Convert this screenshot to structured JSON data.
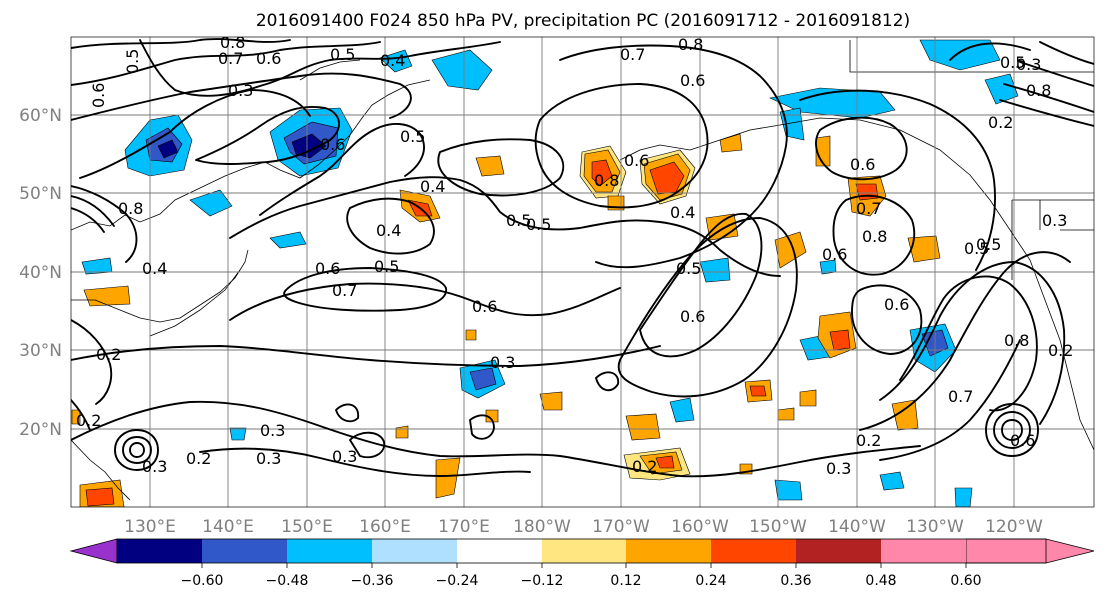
{
  "title": "2016091400 F024 850 hPa PV, precipitation PC (2016091712 - 2016091812)",
  "lat_labels": [
    "60°N",
    "50°N",
    "40°N",
    "30°N",
    "20°N"
  ],
  "lon_labels": [
    "130°E",
    "140°E",
    "150°E",
    "160°E",
    "170°E",
    "180°W",
    "170°W",
    "160°W",
    "150°W",
    "140°W",
    "130°W",
    "120°W"
  ],
  "colorbar": {
    "ticks": [
      "−0.60",
      "−0.48",
      "−0.36",
      "−0.24",
      "−0.12",
      "0.12",
      "0.24",
      "0.36",
      "0.48",
      "0.60"
    ],
    "colors": [
      "#9932cc",
      "#000080",
      "#3158c8",
      "#00bfff",
      "#b0e0ff",
      "#ffffff",
      "#ffe680",
      "#ffa500",
      "#ff4500",
      "#b22222",
      "#ff88aa"
    ]
  },
  "contour_labels": [
    "0.8",
    "0.7",
    "0.6",
    "0.5",
    "0.4",
    "0.5",
    "0.6",
    "0.3",
    "0.6",
    "0.5",
    "0.4",
    "0.5",
    "0.6",
    "0.7",
    "0.8",
    "0.6",
    "0.4",
    "0.5",
    "0.7",
    "0.8",
    "0.6",
    "0.5",
    "0.4",
    "0.6",
    "0.5",
    "0.4",
    "0.6",
    "0.7",
    "0.5",
    "0.6",
    "0.3",
    "0.2",
    "0.3",
    "0.2",
    "0.3",
    "0.2",
    "0.8",
    "0.5",
    "0.6",
    "0.7",
    "0.8",
    "0.6",
    "0.2",
    "0.3",
    "0.3",
    "0.2",
    "0.3",
    "0.3",
    "0.2",
    "0.8",
    "0.8",
    "0.2",
    "0.6",
    "0.5",
    "0.3"
  ]
}
